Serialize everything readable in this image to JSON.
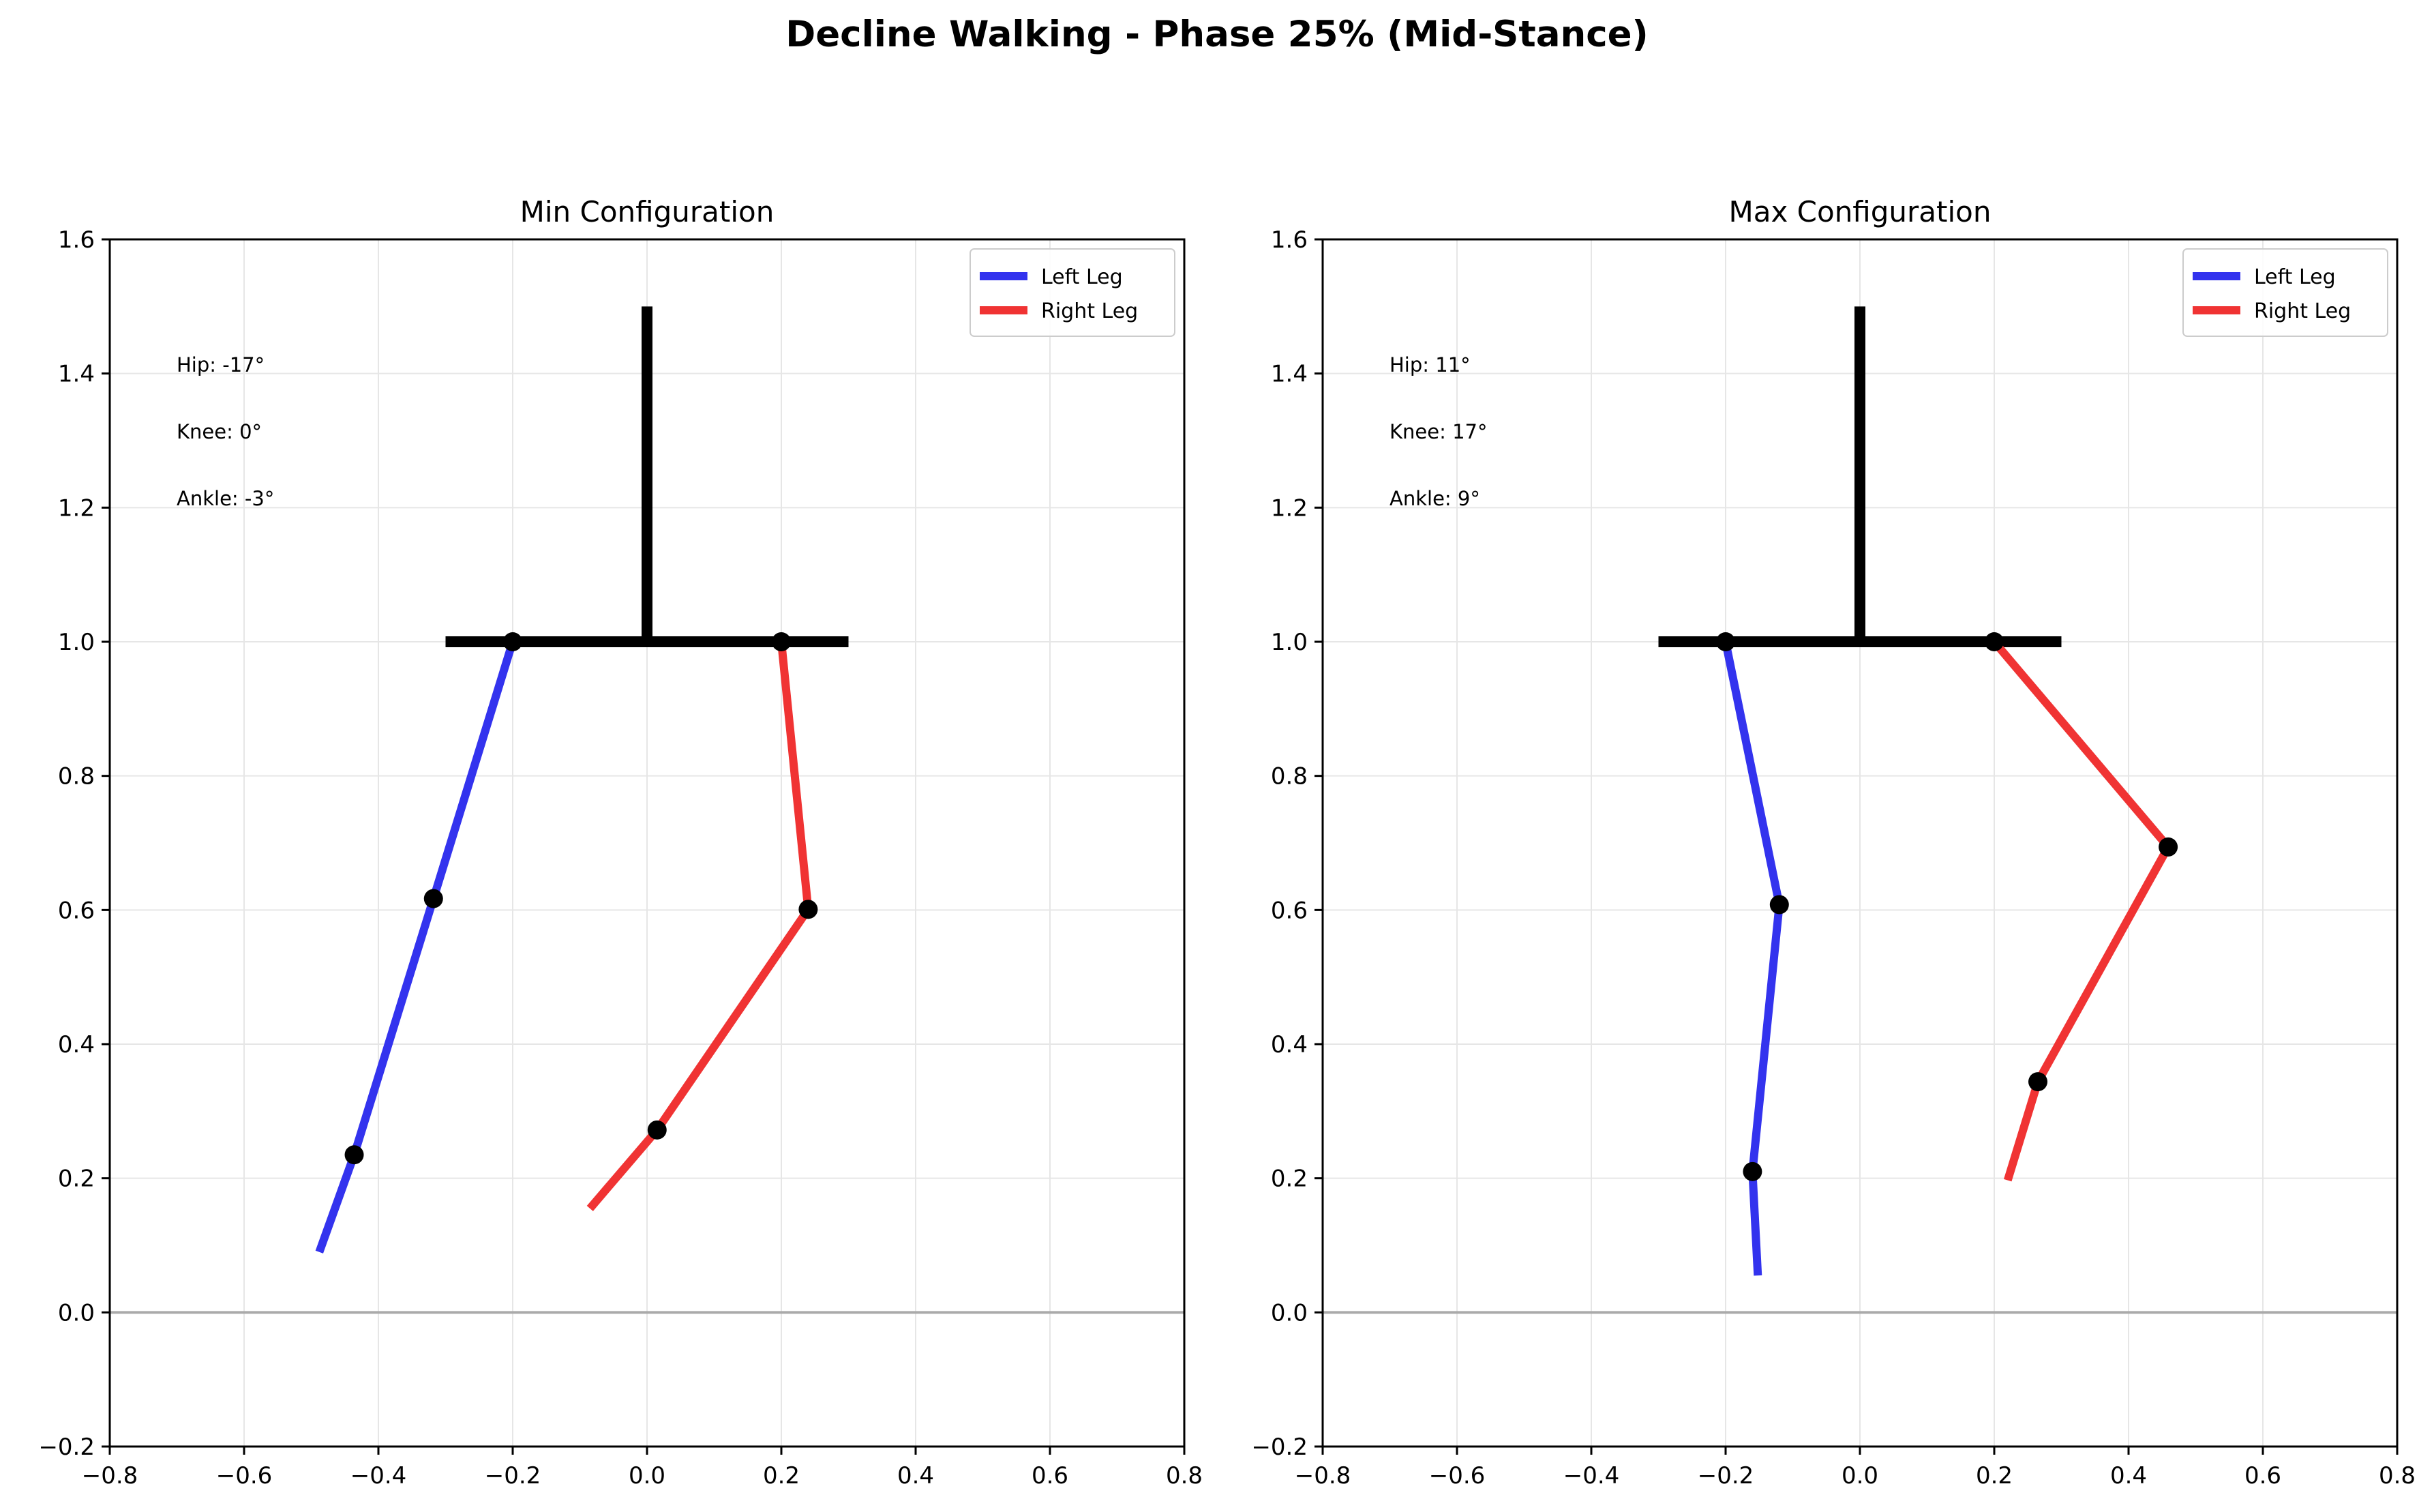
{
  "figure": {
    "title": "Decline Walking - Phase 25% (Mid-Stance)"
  },
  "colors": {
    "left_leg": "#3333ee",
    "right_leg": "#f03333",
    "skeleton": "#000000",
    "ground": "#aaaaaa",
    "grid": "#e6e6e6"
  },
  "chart_data": [
    {
      "type": "line",
      "title": "Min Configuration",
      "xlim": [
        -0.8,
        0.8
      ],
      "ylim": [
        -0.2,
        1.6
      ],
      "xticks": [
        -0.8,
        -0.6,
        -0.4,
        -0.2,
        0.0,
        0.2,
        0.4,
        0.6,
        0.8
      ],
      "yticks": [
        -0.2,
        0.0,
        0.2,
        0.4,
        0.6,
        0.8,
        1.0,
        1.2,
        1.4,
        1.6
      ],
      "grid": true,
      "legend_position": "top-right",
      "legend": [
        "Left Leg",
        "Right Leg"
      ],
      "annotations": [
        "Hip: -17°",
        "Knee: 0°",
        "Ankle: -3°"
      ],
      "ground_y": 0.0,
      "trunk": [
        [
          0.0,
          1.0
        ],
        [
          0.0,
          1.5
        ]
      ],
      "pelvis": [
        [
          -0.3,
          1.0
        ],
        [
          0.3,
          1.0
        ]
      ],
      "series": [
        {
          "name": "Left Leg",
          "x": [
            -0.2,
            -0.318,
            -0.436,
            -0.488
          ],
          "y": [
            1.0,
            0.617,
            0.235,
            0.09
          ]
        },
        {
          "name": "Right Leg",
          "x": [
            0.2,
            0.24,
            0.015,
            -0.085
          ],
          "y": [
            1.0,
            0.601,
            0.272,
            0.155
          ]
        }
      ],
      "joints": [
        [
          -0.2,
          1.0
        ],
        [
          0.2,
          1.0
        ],
        [
          -0.318,
          0.617
        ],
        [
          -0.436,
          0.235
        ],
        [
          0.24,
          0.601
        ],
        [
          0.015,
          0.272
        ]
      ]
    },
    {
      "type": "line",
      "title": "Max Configuration",
      "xlim": [
        -0.8,
        0.8
      ],
      "ylim": [
        -0.2,
        1.6
      ],
      "xticks": [
        -0.8,
        -0.6,
        -0.4,
        -0.2,
        0.0,
        0.2,
        0.4,
        0.6,
        0.8
      ],
      "yticks": [
        -0.2,
        0.0,
        0.2,
        0.4,
        0.6,
        0.8,
        1.0,
        1.2,
        1.4,
        1.6
      ],
      "grid": true,
      "legend_position": "top-right",
      "legend": [
        "Left Leg",
        "Right Leg"
      ],
      "annotations": [
        "Hip: 11°",
        "Knee: 17°",
        "Ankle: 9°"
      ],
      "ground_y": 0.0,
      "trunk": [
        [
          0.0,
          1.0
        ],
        [
          0.0,
          1.5
        ]
      ],
      "pelvis": [
        [
          -0.3,
          1.0
        ],
        [
          0.3,
          1.0
        ]
      ],
      "series": [
        {
          "name": "Left Leg",
          "x": [
            -0.2,
            -0.12,
            -0.16,
            -0.152
          ],
          "y": [
            1.0,
            0.608,
            0.21,
            0.055
          ]
        },
        {
          "name": "Right Leg",
          "x": [
            0.2,
            0.459,
            0.265,
            0.22
          ],
          "y": [
            1.0,
            0.694,
            0.344,
            0.197
          ]
        }
      ],
      "joints": [
        [
          -0.2,
          1.0
        ],
        [
          0.2,
          1.0
        ],
        [
          -0.12,
          0.608
        ],
        [
          -0.16,
          0.21
        ],
        [
          0.459,
          0.694
        ],
        [
          0.265,
          0.344
        ]
      ]
    }
  ]
}
